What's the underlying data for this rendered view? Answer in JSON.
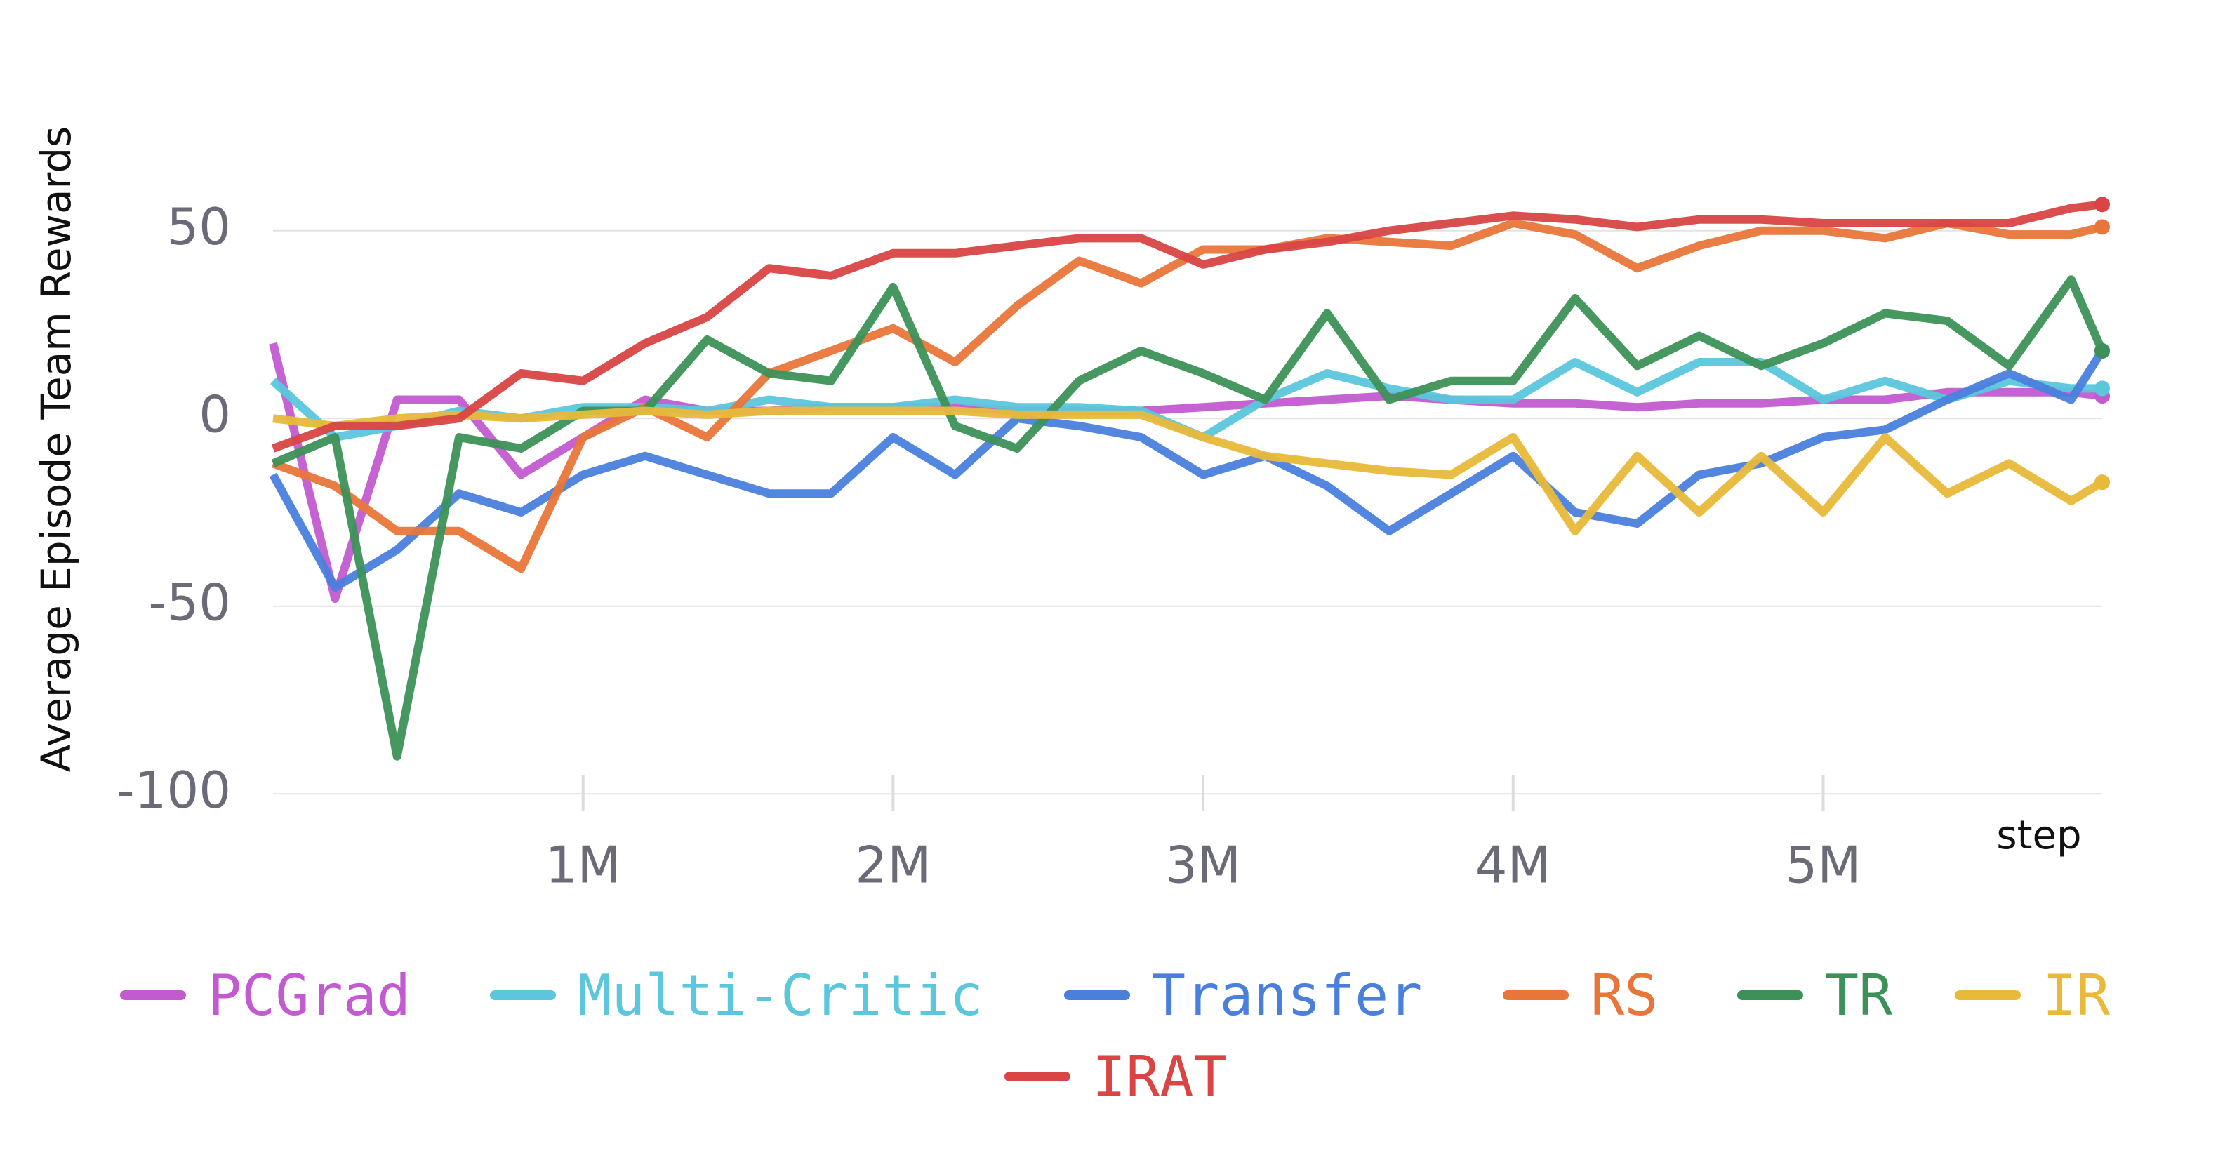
{
  "chart_data": {
    "type": "line",
    "y_label": "Average Episode Team Rewards",
    "x_label": "step",
    "x": [
      0,
      200000,
      400000,
      600000,
      800000,
      1000000,
      1200000,
      1400000,
      1600000,
      1800000,
      2000000,
      2200000,
      2400000,
      2600000,
      2800000,
      3000000,
      3200000,
      3400000,
      3600000,
      3800000,
      4000000,
      4200000,
      4400000,
      4600000,
      4800000,
      5000000,
      5200000,
      5400000,
      5600000,
      5800000,
      5900000
    ],
    "xlim": [
      0,
      5900000
    ],
    "xticks": [
      {
        "value": 1000000,
        "label": "1M"
      },
      {
        "value": 2000000,
        "label": "2M"
      },
      {
        "value": 3000000,
        "label": "3M"
      },
      {
        "value": 4000000,
        "label": "4M"
      },
      {
        "value": 5000000,
        "label": "5M"
      }
    ],
    "ylim": [
      -105,
      92
    ],
    "yticks": [
      -100,
      -50,
      0,
      50
    ],
    "grid": true,
    "series": [
      {
        "name": "PCGrad",
        "color": "#c35bd0",
        "values": [
          20,
          -48,
          5,
          5,
          -15,
          -5,
          5,
          2,
          2,
          3,
          3,
          3,
          2,
          2,
          2,
          3,
          4,
          5,
          6,
          5,
          4,
          4,
          3,
          4,
          4,
          5,
          5,
          7,
          7,
          7,
          6
        ]
      },
      {
        "name": "Multi-Critic",
        "color": "#5bc6dc",
        "values": [
          10,
          -5,
          -2,
          2,
          0,
          3,
          3,
          2,
          5,
          3,
          3,
          5,
          3,
          3,
          2,
          -5,
          5,
          12,
          8,
          5,
          5,
          15,
          7,
          15,
          15,
          5,
          10,
          5,
          10,
          8,
          8
        ]
      },
      {
        "name": "Transfer",
        "color": "#4a7fdc",
        "values": [
          -15,
          -45,
          -35,
          -20,
          -25,
          -15,
          -10,
          -15,
          -20,
          -20,
          -5,
          -15,
          0,
          -2,
          -5,
          -15,
          -10,
          -18,
          -30,
          -20,
          -10,
          -25,
          -28,
          -15,
          -12,
          -5,
          -3,
          5,
          12,
          5,
          18
        ]
      },
      {
        "name": "RS",
        "color": "#e8763a",
        "values": [
          -12,
          -18,
          -30,
          -30,
          -40,
          -5,
          3,
          -5,
          12,
          18,
          24,
          15,
          30,
          42,
          36,
          45,
          45,
          48,
          47,
          46,
          52,
          49,
          40,
          46,
          50,
          50,
          48,
          52,
          49,
          49,
          51
        ]
      },
      {
        "name": "TR",
        "color": "#3d9158",
        "values": [
          -12,
          -5,
          -90,
          -5,
          -8,
          2,
          2,
          21,
          12,
          10,
          35,
          -2,
          -8,
          10,
          18,
          12,
          5,
          28,
          5,
          10,
          10,
          32,
          14,
          22,
          14,
          20,
          28,
          26,
          14,
          37,
          18
        ]
      },
      {
        "name": "IR",
        "color": "#e8b93a",
        "values": [
          0,
          -2,
          0,
          1,
          0,
          1,
          2,
          1,
          2,
          2,
          2,
          2,
          1,
          1,
          1,
          -5,
          -10,
          -12,
          -14,
          -15,
          -5,
          -30,
          -10,
          -25,
          -10,
          -25,
          -5,
          -20,
          -12,
          -22,
          -17
        ]
      },
      {
        "name": "IRAT",
        "color": "#d94444",
        "values": [
          -8,
          -2,
          -2,
          0,
          12,
          10,
          20,
          27,
          40,
          38,
          44,
          44,
          46,
          48,
          48,
          41,
          45,
          47,
          50,
          52,
          54,
          53,
          51,
          53,
          53,
          52,
          52,
          52,
          52,
          56,
          57
        ]
      }
    ]
  }
}
